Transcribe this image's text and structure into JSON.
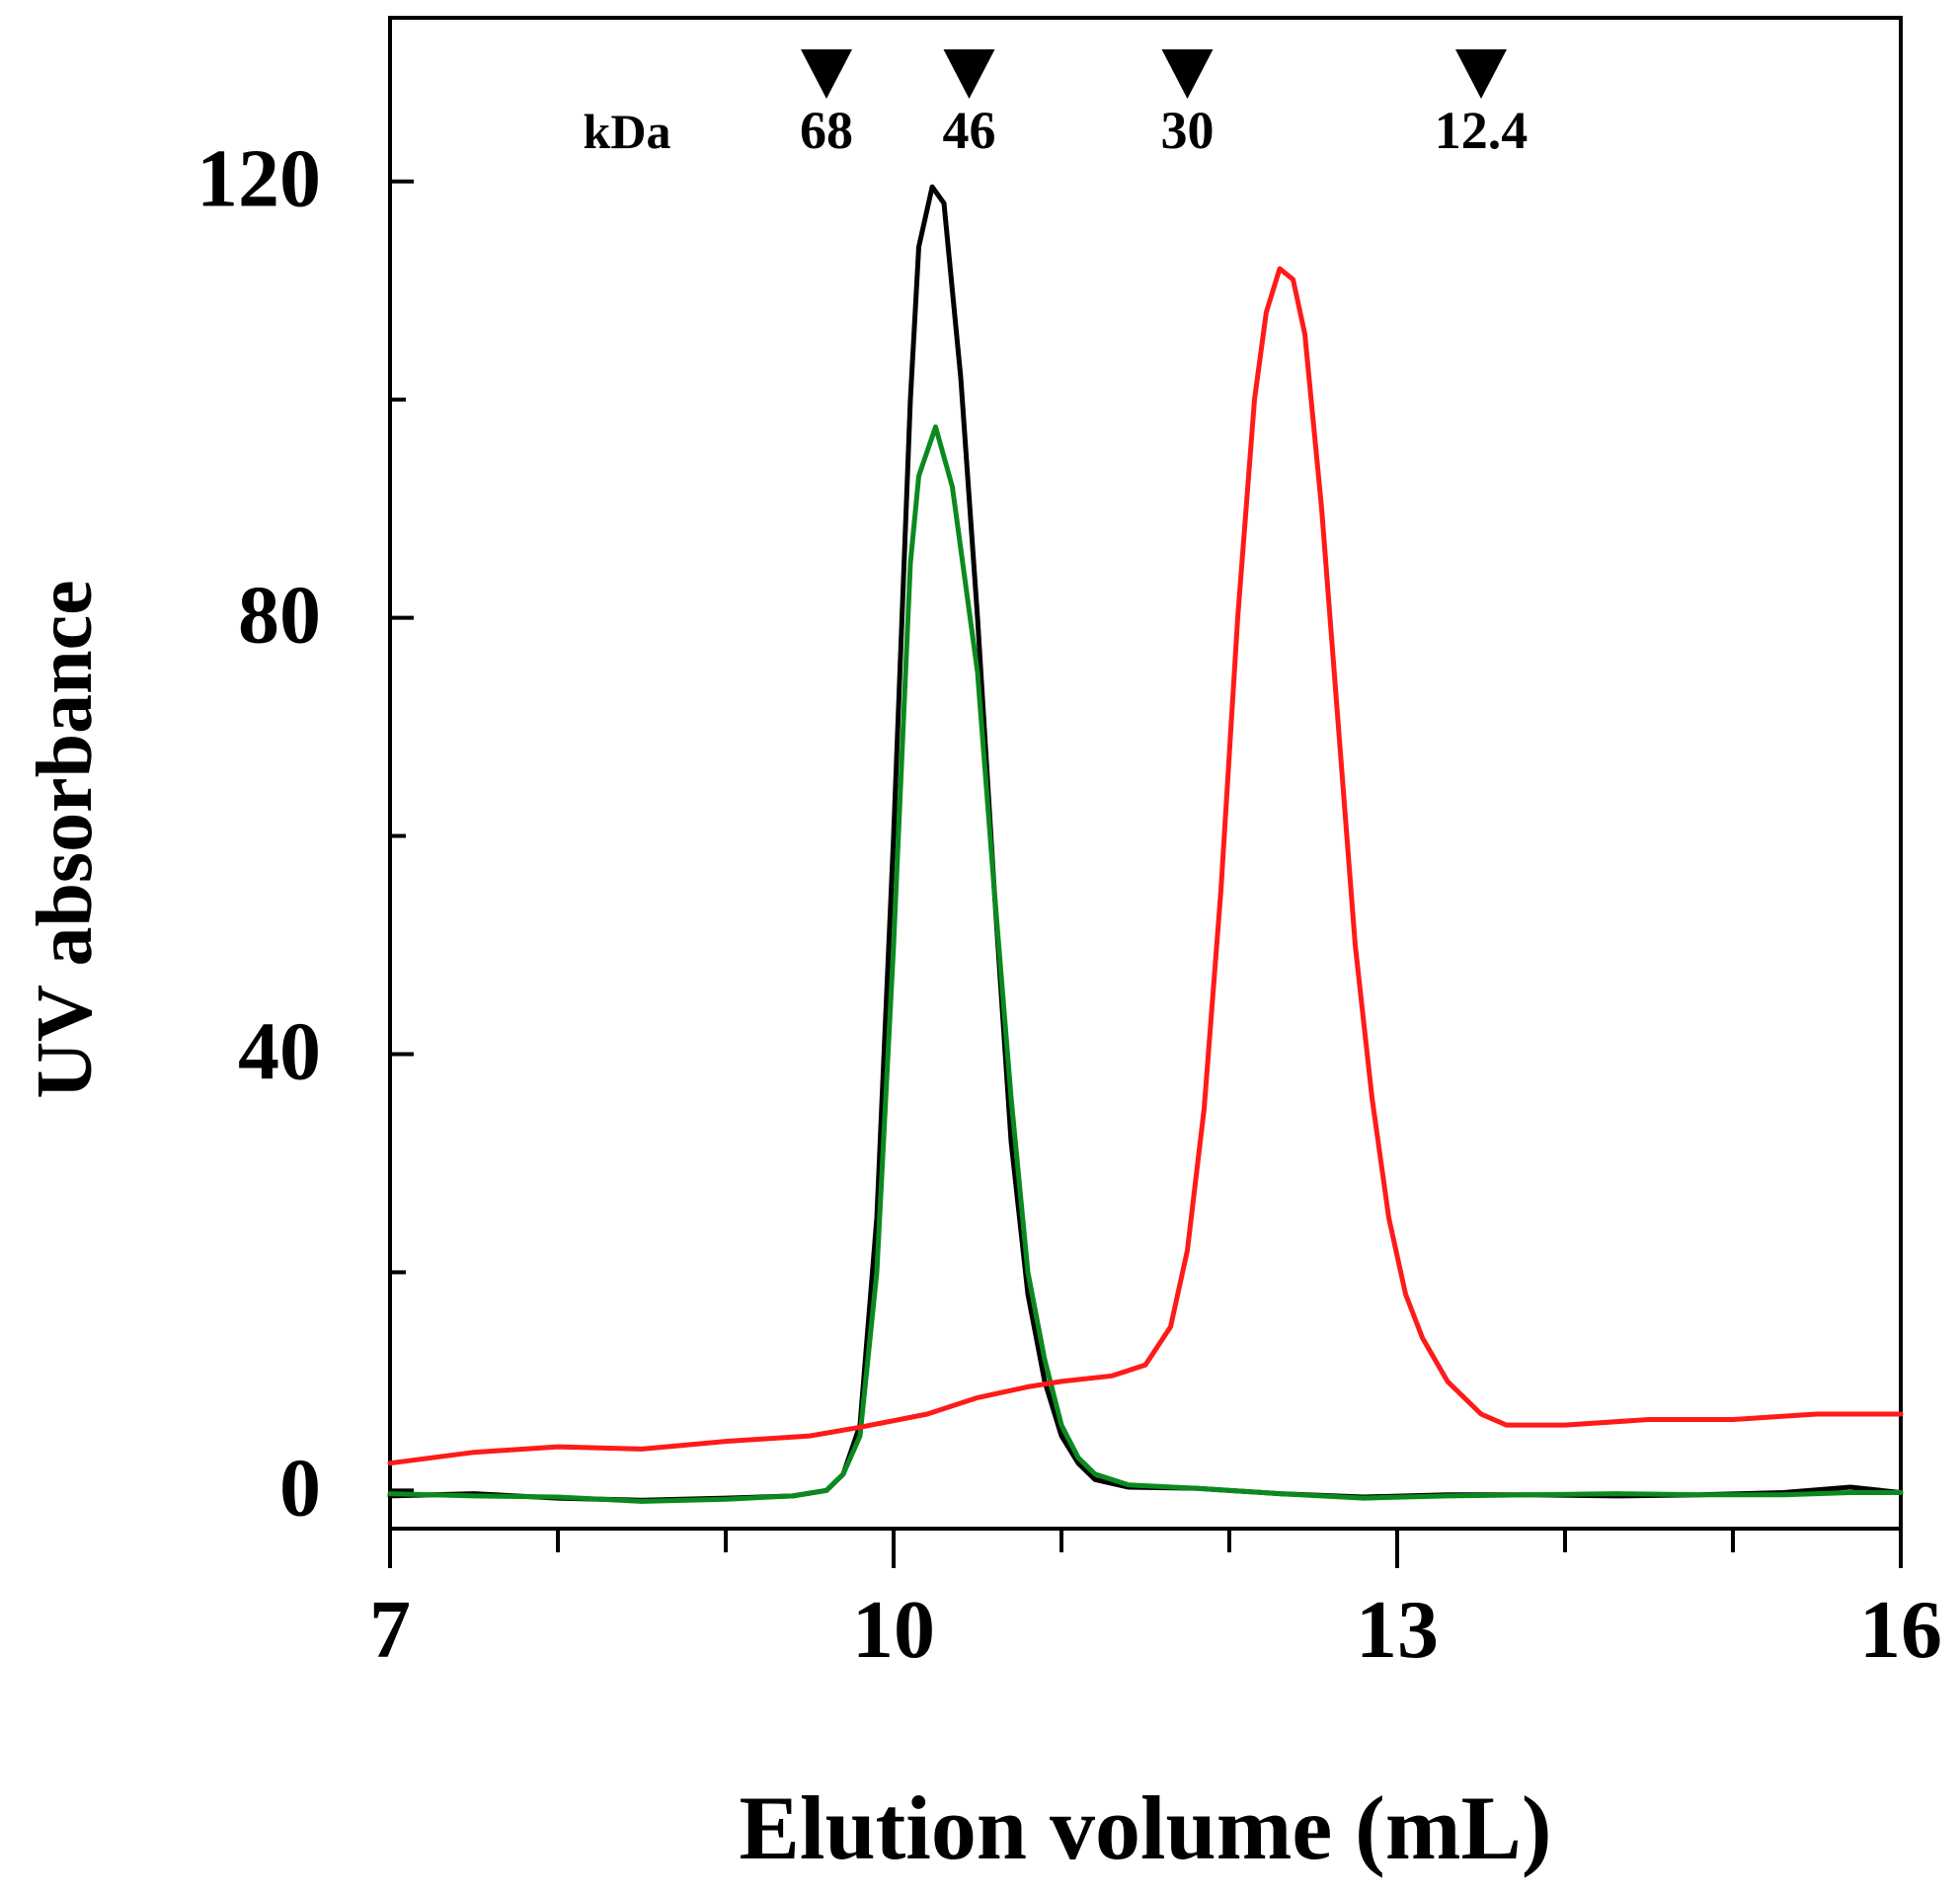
{
  "chart_data": {
    "type": "line",
    "title": "",
    "xlabel": "Elution volume (mL)",
    "ylabel": "UV absorbance",
    "xlim": [
      7,
      16
    ],
    "ylim": [
      -3.5,
      135
    ],
    "x_ticks": [
      7,
      10,
      13,
      16
    ],
    "x_minor_step": 1,
    "y_ticks": [
      0,
      40,
      80,
      120
    ],
    "y_minor_step": 20,
    "grid": false,
    "legend": null,
    "markers": {
      "unit_label": "kDa",
      "items": [
        {
          "label": "68",
          "x": 9.6
        },
        {
          "label": "46",
          "x": 10.45
        },
        {
          "label": "30",
          "x": 11.75
        },
        {
          "label": "12.4",
          "x": 13.5
        }
      ]
    },
    "series": [
      {
        "name": "black trace",
        "color": "#000000",
        "points": [
          [
            7.0,
            -0.5
          ],
          [
            7.5,
            -0.3
          ],
          [
            8.0,
            -0.7
          ],
          [
            8.5,
            -0.9
          ],
          [
            9.0,
            -0.7
          ],
          [
            9.4,
            -0.5
          ],
          [
            9.6,
            0.0
          ],
          [
            9.7,
            1.5
          ],
          [
            9.8,
            6.0
          ],
          [
            9.9,
            25.0
          ],
          [
            10.0,
            60.0
          ],
          [
            10.1,
            100.0
          ],
          [
            10.15,
            114.0
          ],
          [
            10.23,
            119.5
          ],
          [
            10.3,
            118.0
          ],
          [
            10.4,
            102.0
          ],
          [
            10.5,
            80.0
          ],
          [
            10.6,
            55.0
          ],
          [
            10.7,
            32.0
          ],
          [
            10.8,
            18.0
          ],
          [
            10.9,
            10.0
          ],
          [
            11.0,
            5.0
          ],
          [
            11.1,
            2.5
          ],
          [
            11.2,
            1.0
          ],
          [
            11.4,
            0.3
          ],
          [
            11.8,
            0.2
          ],
          [
            12.3,
            -0.3
          ],
          [
            12.8,
            -0.6
          ],
          [
            13.3,
            -0.4
          ],
          [
            13.8,
            -0.4
          ],
          [
            14.3,
            -0.5
          ],
          [
            14.8,
            -0.4
          ],
          [
            15.3,
            -0.2
          ],
          [
            15.7,
            0.3
          ],
          [
            16.0,
            -0.2
          ]
        ]
      },
      {
        "name": "green trace",
        "color": "#0a8a1e",
        "points": [
          [
            7.0,
            -0.3
          ],
          [
            7.5,
            -0.5
          ],
          [
            8.0,
            -0.6
          ],
          [
            8.5,
            -1.0
          ],
          [
            9.0,
            -0.8
          ],
          [
            9.4,
            -0.5
          ],
          [
            9.6,
            0.0
          ],
          [
            9.7,
            1.5
          ],
          [
            9.8,
            5.0
          ],
          [
            9.9,
            20.0
          ],
          [
            10.0,
            50.0
          ],
          [
            10.1,
            85.0
          ],
          [
            10.15,
            93.0
          ],
          [
            10.25,
            97.5
          ],
          [
            10.35,
            92.0
          ],
          [
            10.5,
            75.0
          ],
          [
            10.6,
            55.0
          ],
          [
            10.7,
            36.0
          ],
          [
            10.8,
            20.0
          ],
          [
            10.9,
            12.0
          ],
          [
            11.0,
            6.0
          ],
          [
            11.1,
            3.0
          ],
          [
            11.2,
            1.5
          ],
          [
            11.4,
            0.5
          ],
          [
            11.8,
            0.2
          ],
          [
            12.3,
            -0.3
          ],
          [
            12.8,
            -0.7
          ],
          [
            13.3,
            -0.5
          ],
          [
            13.8,
            -0.4
          ],
          [
            14.3,
            -0.3
          ],
          [
            14.8,
            -0.4
          ],
          [
            15.3,
            -0.4
          ],
          [
            15.7,
            -0.2
          ],
          [
            16.0,
            -0.2
          ]
        ]
      },
      {
        "name": "red trace",
        "color": "#ff1a1a",
        "points": [
          [
            7.0,
            2.5
          ],
          [
            7.5,
            3.5
          ],
          [
            8.0,
            4.0
          ],
          [
            8.5,
            3.8
          ],
          [
            9.0,
            4.5
          ],
          [
            9.5,
            5.0
          ],
          [
            9.8,
            5.8
          ],
          [
            10.2,
            7.0
          ],
          [
            10.5,
            8.5
          ],
          [
            10.8,
            9.5
          ],
          [
            11.0,
            10.0
          ],
          [
            11.3,
            10.5
          ],
          [
            11.5,
            11.5
          ],
          [
            11.65,
            15.0
          ],
          [
            11.75,
            22.0
          ],
          [
            11.85,
            35.0
          ],
          [
            11.95,
            55.0
          ],
          [
            12.05,
            80.0
          ],
          [
            12.15,
            100.0
          ],
          [
            12.22,
            108.0
          ],
          [
            12.3,
            112.0
          ],
          [
            12.38,
            111.0
          ],
          [
            12.45,
            106.0
          ],
          [
            12.55,
            90.0
          ],
          [
            12.65,
            70.0
          ],
          [
            12.75,
            50.0
          ],
          [
            12.85,
            36.0
          ],
          [
            12.95,
            25.0
          ],
          [
            13.05,
            18.0
          ],
          [
            13.15,
            14.0
          ],
          [
            13.3,
            10.0
          ],
          [
            13.5,
            7.0
          ],
          [
            13.65,
            6.0
          ],
          [
            13.8,
            6.0
          ],
          [
            14.0,
            6.0
          ],
          [
            14.5,
            6.5
          ],
          [
            15.0,
            6.5
          ],
          [
            15.5,
            7.0
          ],
          [
            16.0,
            7.0
          ]
        ]
      }
    ]
  }
}
